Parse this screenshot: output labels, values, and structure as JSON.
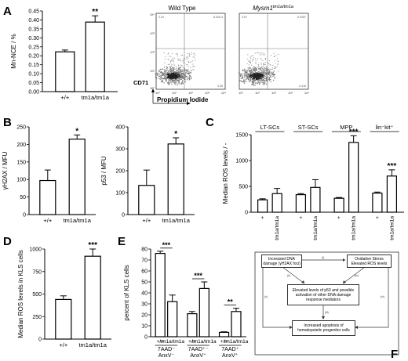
{
  "panels": {
    "A": "A",
    "B": "B",
    "C": "C",
    "D": "D",
    "E": "E",
    "F": "F"
  },
  "chart_data": [
    {
      "id": "A",
      "type": "bar",
      "ylabel": "Mn-NCE / %",
      "categories": [
        "+/+",
        "tm1a/tm1a"
      ],
      "values": [
        0.222,
        0.388
      ],
      "errors": [
        0.01,
        0.035
      ],
      "ylim": [
        0,
        0.45
      ],
      "yticks": [
        "0.00",
        "0.05",
        "0.10",
        "0.15",
        "0.20",
        "0.25",
        "0.30",
        "0.35",
        "0.40",
        "0.45"
      ],
      "sig": [
        "",
        "**"
      ]
    },
    {
      "id": "B1",
      "type": "bar",
      "ylabel": "γH2AX / MFU",
      "categories": [
        "+/+",
        "tm1a/tm1a"
      ],
      "values": [
        97,
        215
      ],
      "errors": [
        30,
        12
      ],
      "ylim": [
        0,
        250
      ],
      "yticks": [
        "0",
        "50",
        "100",
        "150",
        "200",
        "250"
      ],
      "sig": [
        "",
        "*"
      ]
    },
    {
      "id": "B2",
      "type": "bar",
      "ylabel": "p53 / MFU",
      "categories": [
        "+/+",
        "tm1a/tm1a"
      ],
      "values": [
        133,
        322
      ],
      "errors": [
        70,
        28
      ],
      "ylim": [
        0,
        400
      ],
      "yticks": [
        "0",
        "100",
        "200",
        "300",
        "400"
      ],
      "sig": [
        "",
        "*"
      ]
    },
    {
      "id": "C",
      "type": "bar",
      "ylabel": "Median ROS levels / -",
      "groups": [
        "LT-SCs",
        "ST-SCs",
        "MPP",
        "lin⁻kit⁺"
      ],
      "categories": [
        "+",
        "tm1a/tm1a",
        "+",
        "tm1a/tm1a",
        "+",
        "tm1a/tm1a",
        "+",
        "tm1a/tm1a"
      ],
      "values": [
        240,
        360,
        340,
        480,
        270,
        1350,
        370,
        700
      ],
      "errors": [
        20,
        100,
        20,
        150,
        15,
        130,
        20,
        120
      ],
      "ylim": [
        0,
        1500
      ],
      "yticks": [
        "0",
        "500",
        "1000",
        "1500"
      ],
      "sig": [
        "",
        "",
        "",
        "",
        "",
        "***",
        "",
        "***"
      ]
    },
    {
      "id": "D",
      "type": "bar",
      "ylabel": "Median ROS levels in KLS cells",
      "categories": [
        "+/+",
        "tm1a/tm1a"
      ],
      "values": [
        440,
        920
      ],
      "errors": [
        40,
        80
      ],
      "ylim": [
        0,
        1000
      ],
      "yticks": [
        "0",
        "250",
        "500",
        "750",
        "1000"
      ],
      "sig": [
        "",
        "***"
      ]
    },
    {
      "id": "E",
      "type": "bar",
      "ylabel": "percent of KLS cells",
      "groups": [
        "7AAD⁻ AnxV⁻",
        "7AAD⁺⁻ AnxV⁺",
        "7AAD⁺ AnxV⁺"
      ],
      "categories": [
        "+/+",
        "tm1a/tm1a",
        "+/+",
        "tm1a/tm1a",
        "+/+",
        "tm1a/tm1a"
      ],
      "values": [
        76,
        32,
        21,
        44,
        4,
        23
      ],
      "errors": [
        2,
        6,
        2,
        6,
        0.5,
        3
      ],
      "ylim": [
        0,
        80
      ],
      "yticks": [
        "0",
        "10",
        "20",
        "30",
        "40",
        "50",
        "60",
        "70",
        "80"
      ],
      "sig": [
        "***",
        "***",
        "**"
      ]
    }
  ],
  "flow": {
    "wt_title": "Wild Type",
    "mut_title": "Mysm1",
    "mut_sup": "tm1a/tm1a",
    "ylabel": "CD71",
    "xlabel": "Propidium Iodide",
    "ticks": [
      "10⁰",
      "10¹",
      "10²",
      "10³",
      "10⁴"
    ],
    "wt_q": [
      "2.23",
      "5.32e-3",
      "",
      "0.45"
    ],
    "mut_q": [
      "3.97",
      "0.0257",
      "",
      "0.416"
    ]
  },
  "diagram": {
    "box1": "Increased DNA damage (γH2AX foci)",
    "box2": "Oxidative Stress Elevated ROS levels",
    "box3": "Elevated levels of p53 and possible activation of other DNA damage response mediators",
    "box4": "Increased apoptosis of hematopoietic progenitor cells",
    "arrows": [
      "(i)",
      "(ii)",
      "(iii)",
      "(iv)",
      "(v)",
      "(vi)"
    ]
  }
}
